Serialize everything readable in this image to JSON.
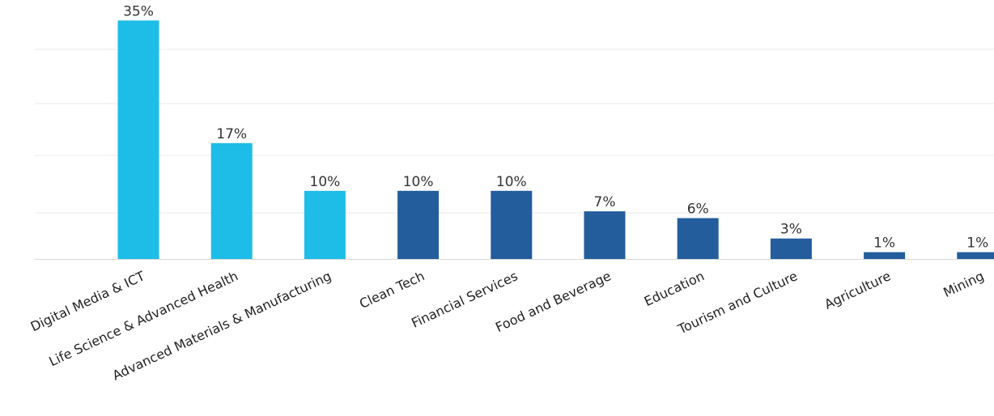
{
  "chart_data": {
    "type": "bar",
    "title": "",
    "xlabel": "",
    "ylabel": "",
    "ylim": [
      0,
      38
    ],
    "grid": true,
    "legend": "none",
    "unit": "%",
    "categories": [
      "Digital Media & ICT",
      "Life Science & Advanced Health",
      "Advanced Materials & Manufacturing",
      "Clean Tech",
      "Financial Services",
      "Food and Beverage",
      "Education",
      "Tourism and Culture",
      "Agriculture",
      "Mining"
    ],
    "values": [
      35,
      17,
      10,
      10,
      10,
      7,
      6,
      3,
      1,
      1
    ],
    "data_labels": [
      "35%",
      "17%",
      "10%",
      "10%",
      "10%",
      "7%",
      "6%",
      "3%",
      "1%",
      "1%"
    ],
    "highlighted": [
      true,
      true,
      true,
      false,
      false,
      false,
      false,
      false,
      false,
      false
    ],
    "colors": {
      "highlight": "#1EBDE7",
      "default": "#245D9C",
      "grid": "#e8e8e8"
    }
  }
}
